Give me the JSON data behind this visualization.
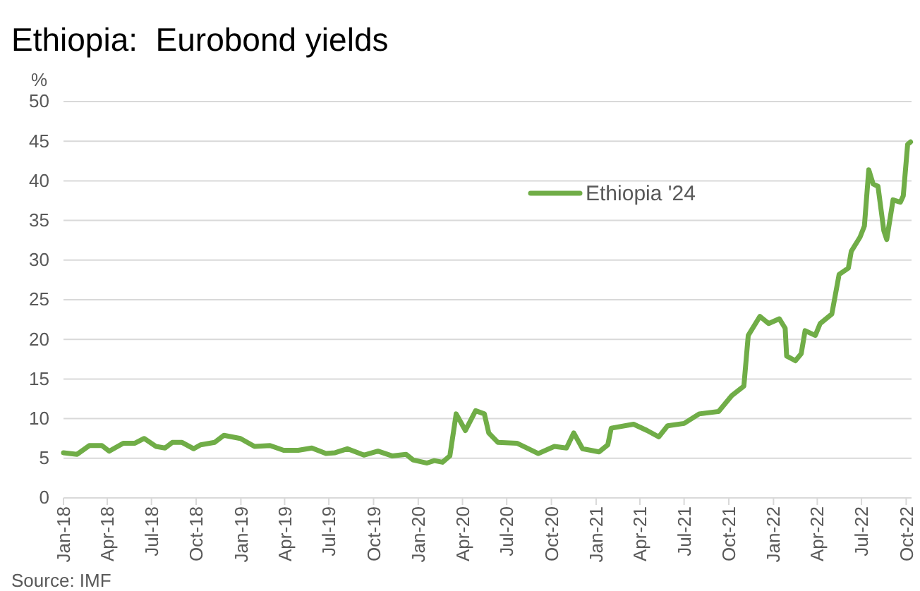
{
  "chart_data": {
    "type": "line",
    "title": "Ethiopia:  Eurobond yields",
    "ylabel": "%",
    "annotations": [
      "Source: IMF"
    ],
    "x": [
      "2018-01-01",
      "2018-01-29",
      "2018-02-23",
      "2018-03-21",
      "2018-04-05",
      "2018-05-04",
      "2018-05-28",
      "2018-06-16",
      "2018-07-10",
      "2018-07-29",
      "2018-08-13",
      "2018-09-02",
      "2018-09-26",
      "2018-10-10",
      "2018-11-08",
      "2018-11-27",
      "2018-12-31",
      "2019-01-29",
      "2019-03-02",
      "2019-03-30",
      "2019-04-29",
      "2019-05-27",
      "2019-06-25",
      "2019-07-14",
      "2019-08-08",
      "2019-09-11",
      "2019-10-10",
      "2019-11-08",
      "2019-12-07",
      "2019-12-21",
      "2020-01-19",
      "2020-02-03",
      "2020-02-20",
      "2020-03-06",
      "2020-03-19",
      "2020-04-07",
      "2020-04-28",
      "2020-05-16",
      "2020-05-25",
      "2020-06-13",
      "2020-07-22",
      "2020-09-04",
      "2020-10-07",
      "2020-11-01",
      "2020-11-16",
      "2020-12-04",
      "2021-01-07",
      "2021-01-25",
      "2021-02-01",
      "2021-03-19",
      "2021-04-16",
      "2021-05-10",
      "2021-05-28",
      "2021-07-01",
      "2021-08-01",
      "2021-09-10",
      "2021-10-07",
      "2021-11-01",
      "2021-11-10",
      "2021-12-04",
      "2021-12-22",
      "2022-01-13",
      "2022-01-25",
      "2022-01-28",
      "2022-02-15",
      "2022-02-27",
      "2022-03-07",
      "2022-03-28",
      "2022-04-07",
      "2022-05-01",
      "2022-05-16",
      "2022-06-04",
      "2022-06-10",
      "2022-06-28",
      "2022-07-07",
      "2022-07-16",
      "2022-07-25",
      "2022-08-04",
      "2022-08-16",
      "2022-08-22",
      "2022-09-04",
      "2022-09-19",
      "2022-09-25",
      "2022-10-04",
      "2022-10-10"
    ],
    "series": [
      {
        "name": "Ethiopia '24",
        "color": "#70ad47",
        "values": [
          5.7,
          5.5,
          6.6,
          6.6,
          5.9,
          6.9,
          6.9,
          7.5,
          6.5,
          6.3,
          7.0,
          7.0,
          6.2,
          6.7,
          7.0,
          7.9,
          7.5,
          6.5,
          6.6,
          6.0,
          6.0,
          6.3,
          5.6,
          5.7,
          6.2,
          5.4,
          5.9,
          5.3,
          5.5,
          4.8,
          4.4,
          4.7,
          4.5,
          5.3,
          10.6,
          8.5,
          11.0,
          10.6,
          8.2,
          7.0,
          6.9,
          5.6,
          6.5,
          6.3,
          8.2,
          6.2,
          5.8,
          6.7,
          8.8,
          9.3,
          8.5,
          7.7,
          9.1,
          9.4,
          10.6,
          10.9,
          12.9,
          14.1,
          20.5,
          22.9,
          22.0,
          22.6,
          21.4,
          17.9,
          17.3,
          18.2,
          21.1,
          20.5,
          22.0,
          23.2,
          28.2,
          29.0,
          31.1,
          32.9,
          34.3,
          41.4,
          39.6,
          39.3,
          33.7,
          32.6,
          37.6,
          37.3,
          38.1,
          44.6,
          44.9
        ]
      }
    ],
    "xlim": [
      "2018-01-01",
      "2022-10-12"
    ],
    "xticks": [
      {
        "value": "2018-01-01",
        "label": "Jan-18"
      },
      {
        "value": "2018-04-01",
        "label": "Apr-18"
      },
      {
        "value": "2018-07-01",
        "label": "Jul-18"
      },
      {
        "value": "2018-10-01",
        "label": "Oct-18"
      },
      {
        "value": "2019-01-01",
        "label": "Jan-19"
      },
      {
        "value": "2019-04-01",
        "label": "Apr-19"
      },
      {
        "value": "2019-07-01",
        "label": "Jul-19"
      },
      {
        "value": "2019-10-01",
        "label": "Oct-19"
      },
      {
        "value": "2020-01-01",
        "label": "Jan-20"
      },
      {
        "value": "2020-04-01",
        "label": "Apr-20"
      },
      {
        "value": "2020-07-01",
        "label": "Jul-20"
      },
      {
        "value": "2020-10-01",
        "label": "Oct-20"
      },
      {
        "value": "2021-01-01",
        "label": "Jan-21"
      },
      {
        "value": "2021-04-01",
        "label": "Apr-21"
      },
      {
        "value": "2021-07-01",
        "label": "Jul-21"
      },
      {
        "value": "2021-10-01",
        "label": "Oct-21"
      },
      {
        "value": "2022-01-01",
        "label": "Jan-22"
      },
      {
        "value": "2022-04-01",
        "label": "Apr-22"
      },
      {
        "value": "2022-07-01",
        "label": "Jul-22"
      },
      {
        "value": "2022-10-01",
        "label": "Oct-22"
      }
    ],
    "ylim": [
      0,
      50
    ],
    "yticks": [
      0,
      5,
      10,
      15,
      20,
      25,
      30,
      35,
      40,
      45,
      50
    ],
    "grid": "y",
    "legend": "top right",
    "marker": "none",
    "line_style": "solid"
  }
}
